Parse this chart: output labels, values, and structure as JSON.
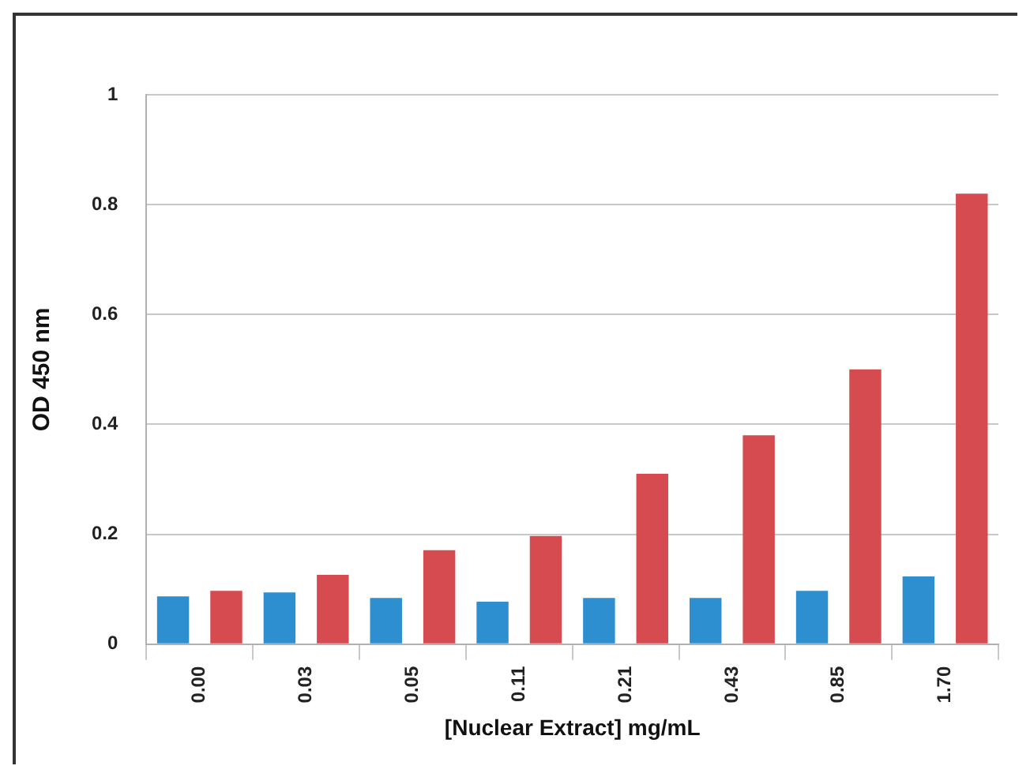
{
  "chart_data": {
    "type": "bar",
    "xlabel": "[Nuclear Extract] mg/mL",
    "ylabel": "OD 450 nm",
    "categories": [
      "0.00",
      "0.03",
      "0.05",
      "0.11",
      "0.21",
      "0.43",
      "0.85",
      "1.70"
    ],
    "series": [
      {
        "color": "#2e8fd0",
        "values": [
          0.087,
          0.094,
          0.084,
          0.077,
          0.084,
          0.084,
          0.097,
          0.123
        ]
      },
      {
        "color": "#d64b4f",
        "values": [
          0.097,
          0.126,
          0.171,
          0.197,
          0.31,
          0.38,
          0.5,
          0.82
        ]
      }
    ],
    "ylim": [
      0,
      1
    ],
    "yticks": [
      0,
      {
        "value": 0.2,
        "label": "0.2"
      },
      {
        "value": 0.4,
        "label": "0.4"
      },
      {
        "value": 0.6,
        "label": "0.6"
      },
      {
        "value": 0.8,
        "label": "0.8"
      },
      1
    ],
    "grid": "y",
    "legend": false
  }
}
